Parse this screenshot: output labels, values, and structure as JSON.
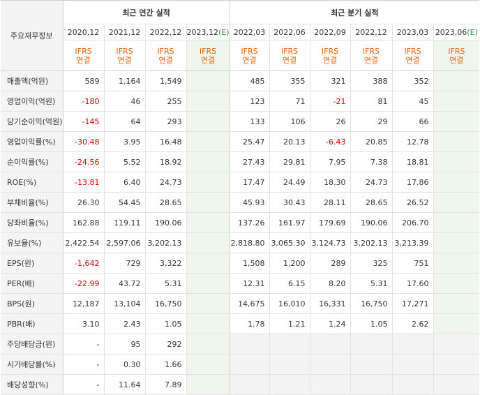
{
  "header": {
    "row_label": "주요재무정보",
    "annual_title": "최근 연간 실적",
    "quarter_title": "최근 분기 실적",
    "annual_periods": [
      "2020,12",
      "2021,12",
      "2022,12",
      "2023,12(E)"
    ],
    "quarter_periods": [
      "2022,03",
      "2022,06",
      "2022,09",
      "2022,12",
      "2023,03",
      "2023,06(E)"
    ],
    "ifrs_line1": "IFRS",
    "ifrs_line2": "연결"
  },
  "rows": [
    {
      "label": "매출액(억원)",
      "annual": [
        "589",
        "1,164",
        "1,549",
        ""
      ],
      "quarter": [
        "485",
        "355",
        "321",
        "388",
        "352",
        ""
      ]
    },
    {
      "label": "영업이익(억원)",
      "annual": [
        "-180",
        "46",
        "255",
        ""
      ],
      "quarter": [
        "123",
        "71",
        "-21",
        "81",
        "45",
        ""
      ]
    },
    {
      "label": "당기순이익(억원)",
      "annual": [
        "-145",
        "64",
        "293",
        ""
      ],
      "quarter": [
        "133",
        "106",
        "26",
        "29",
        "66",
        ""
      ]
    },
    {
      "label": "영업이익률(%)",
      "annual": [
        "-30.48",
        "3.95",
        "16.48",
        ""
      ],
      "quarter": [
        "25.47",
        "20.13",
        "-6.43",
        "20.85",
        "12.78",
        ""
      ]
    },
    {
      "label": "순이익률(%)",
      "annual": [
        "-24.56",
        "5.52",
        "18.92",
        ""
      ],
      "quarter": [
        "27.43",
        "29.81",
        "7.95",
        "7.38",
        "18.81",
        ""
      ]
    },
    {
      "label": "ROE(%)",
      "annual": [
        "-13.81",
        "6.40",
        "24.73",
        ""
      ],
      "quarter": [
        "17.47",
        "24.49",
        "18.30",
        "24.73",
        "17.86",
        ""
      ]
    },
    {
      "label": "부채비율(%)",
      "annual": [
        "26.30",
        "54.45",
        "28.65",
        ""
      ],
      "quarter": [
        "45.93",
        "30.43",
        "28.11",
        "28.65",
        "26.52",
        ""
      ]
    },
    {
      "label": "당좌비율(%)",
      "annual": [
        "162.88",
        "119.11",
        "190.06",
        ""
      ],
      "quarter": [
        "137.26",
        "161.97",
        "179.69",
        "190.06",
        "206.70",
        ""
      ]
    },
    {
      "label": "유보율(%)",
      "annual": [
        "2,422.54",
        "2,597.06",
        "3,202.13",
        ""
      ],
      "quarter": [
        "2,818.80",
        "3,065.30",
        "3,124.73",
        "3,202.13",
        "3,213.39",
        ""
      ]
    },
    {
      "label": "EPS(원)",
      "annual": [
        "-1,642",
        "729",
        "3,322",
        ""
      ],
      "quarter": [
        "1,508",
        "1,200",
        "289",
        "325",
        "751",
        ""
      ]
    },
    {
      "label": "PER(배)",
      "annual": [
        "-22.99",
        "43.72",
        "5.31",
        ""
      ],
      "quarter": [
        "12.31",
        "6.15",
        "8.20",
        "5.31",
        "17.60",
        ""
      ]
    },
    {
      "label": "BPS(원)",
      "annual": [
        "12,187",
        "13,104",
        "16,750",
        ""
      ],
      "quarter": [
        "14,675",
        "16,010",
        "16,331",
        "16,750",
        "17,271",
        ""
      ]
    },
    {
      "label": "PBR(배)",
      "annual": [
        "3.10",
        "2.43",
        "1.05",
        ""
      ],
      "quarter": [
        "1.78",
        "1.21",
        "1.24",
        "1.05",
        "2.62",
        ""
      ]
    },
    {
      "label": "주당배당금(원)",
      "annual": [
        "-",
        "95",
        "292",
        ""
      ],
      "quarter": null
    },
    {
      "label": "시가배당률(%)",
      "annual": [
        "-",
        "0.30",
        "1.66",
        ""
      ],
      "quarter": null
    },
    {
      "label": "배당성향(%)",
      "annual": [
        "-",
        "11.64",
        "7.89",
        ""
      ],
      "quarter": null
    }
  ],
  "colors": {
    "negative": "#d60000",
    "ifrs": "#e8630a",
    "estimate_bg": "#eff7ed",
    "estimate_mark": "#2f9b2f"
  }
}
